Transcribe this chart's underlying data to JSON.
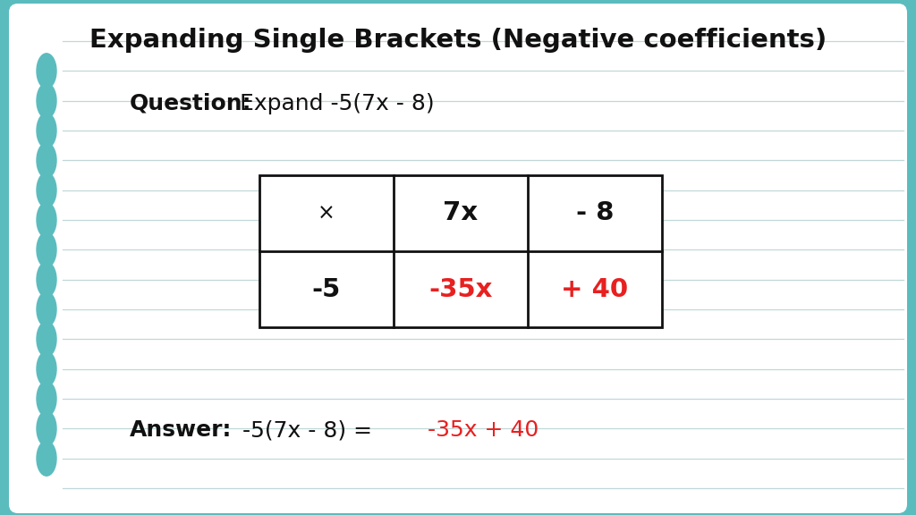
{
  "title": "Expanding Single Brackets (Negative coefficients)",
  "question_label": "Question:",
  "question_text": " Expand -5(7x - 8)",
  "answer_label": "Answer:",
  "answer_black": " -5(7x - 8) = ",
  "answer_red": "-35x + 40",
  "table_headers": [
    "×",
    "7x",
    "- 8"
  ],
  "table_row1_black": "-5",
  "table_row1_red1": "-35x",
  "table_row1_red2": "+ 40",
  "bg_color": "#5bbcbe",
  "card_color": "#ffffff",
  "line_color": "#c0d8d8",
  "dot_color": "#5bbcbe",
  "title_color": "#111111",
  "black_text": "#111111",
  "red_text": "#e82020",
  "figsize": [
    10.24,
    5.76
  ],
  "num_lines": 16
}
